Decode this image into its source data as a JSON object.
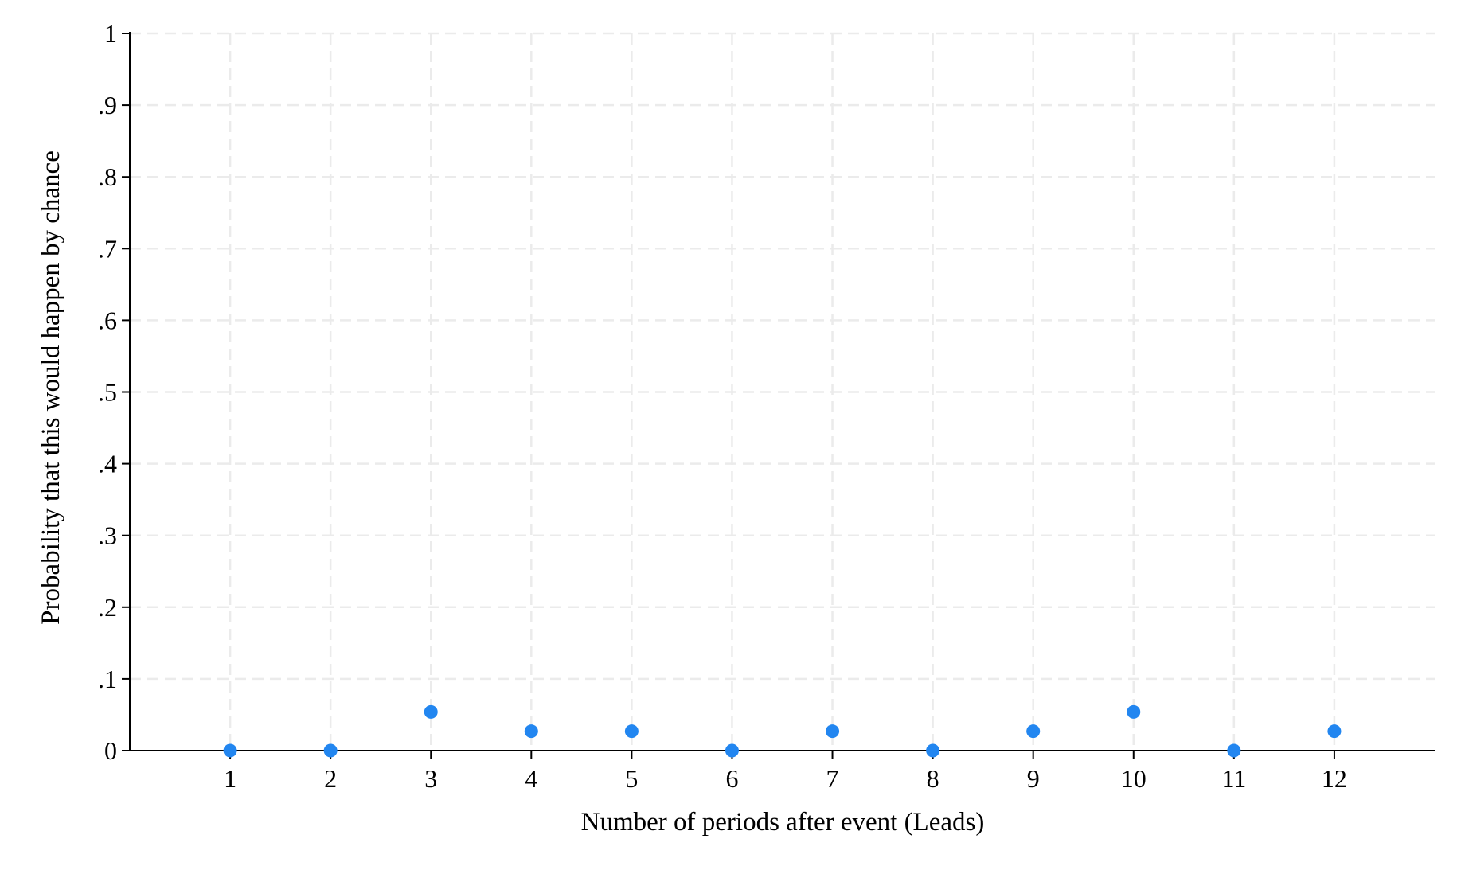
{
  "chart_data": {
    "type": "scatter",
    "title": "",
    "xlabel": "Number of periods after event (Leads)",
    "ylabel": "Probability that this would happen by chance",
    "x": [
      1,
      2,
      3,
      4,
      5,
      6,
      7,
      8,
      9,
      10,
      11,
      12
    ],
    "y": [
      0,
      0,
      0.054,
      0.027,
      0.027,
      0,
      0.027,
      0,
      0.027,
      0.054,
      0,
      0.027
    ],
    "xlim": [
      0,
      13
    ],
    "ylim": [
      0,
      1
    ],
    "xticks": [
      1,
      2,
      3,
      4,
      5,
      6,
      7,
      8,
      9,
      10,
      11,
      12
    ],
    "xtick_labels": [
      "1",
      "2",
      "3",
      "4",
      "5",
      "6",
      "7",
      "8",
      "9",
      "10",
      "11",
      "12"
    ],
    "yticks": [
      0,
      0.1,
      0.2,
      0.3,
      0.4,
      0.5,
      0.6,
      0.7,
      0.8,
      0.9,
      1
    ],
    "ytick_labels": [
      "0",
      ".1",
      ".2",
      ".3",
      ".4",
      ".5",
      ".6",
      ".7",
      ".8",
      ".9",
      "1"
    ],
    "grid": true,
    "marker_color": "#2286f0"
  }
}
